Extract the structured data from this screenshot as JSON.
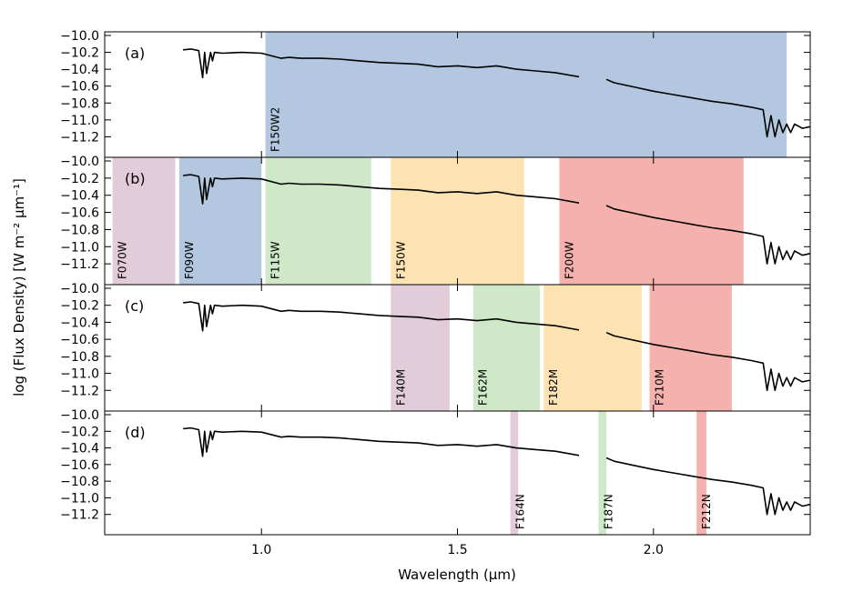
{
  "chart_data": {
    "type": "line",
    "xlabel": "Wavelength (μm)",
    "ylabel": "log (Flux Density) [W m⁻² μm⁻¹]",
    "xlim": [
      0.6,
      2.4
    ],
    "ylim": [
      -11.4,
      -10.0
    ],
    "x_ticks": [
      {
        "value": 1.0,
        "label": "1.0"
      },
      {
        "value": 1.5,
        "label": "1.5"
      },
      {
        "value": 2.0,
        "label": "2.0"
      }
    ],
    "y_ticks": [
      {
        "value": -10.0,
        "label": "−10.0"
      },
      {
        "value": -10.2,
        "label": "−10.2"
      },
      {
        "value": -10.4,
        "label": "−10.4"
      },
      {
        "value": -10.6,
        "label": "−10.6"
      },
      {
        "value": -10.8,
        "label": "−10.8"
      },
      {
        "value": -11.0,
        "label": "−11.0"
      },
      {
        "value": -11.2,
        "label": "−11.2"
      }
    ],
    "spectrum": {
      "segments": [
        {
          "x": [
            0.8,
            0.82,
            0.84,
            0.85,
            0.855,
            0.86,
            0.87,
            0.875,
            0.88,
            0.9,
            0.95,
            1.0,
            1.05,
            1.07,
            1.1,
            1.15,
            1.2,
            1.25,
            1.3,
            1.35,
            1.4,
            1.45,
            1.5,
            1.55,
            1.6,
            1.65,
            1.7,
            1.75,
            1.81
          ],
          "y": [
            -10.17,
            -10.16,
            -10.18,
            -10.5,
            -10.2,
            -10.45,
            -10.2,
            -10.3,
            -10.2,
            -10.21,
            -10.2,
            -10.21,
            -10.27,
            -10.26,
            -10.27,
            -10.27,
            -10.28,
            -10.3,
            -10.32,
            -10.33,
            -10.34,
            -10.37,
            -10.36,
            -10.38,
            -10.36,
            -10.4,
            -10.42,
            -10.44,
            -10.49
          ]
        },
        {
          "x": [
            1.88,
            1.9,
            1.95,
            2.0,
            2.05,
            2.1,
            2.15,
            2.2,
            2.25,
            2.28,
            2.29,
            2.3,
            2.31,
            2.32,
            2.33,
            2.34,
            2.35,
            2.36,
            2.38,
            2.4
          ],
          "y": [
            -10.52,
            -10.56,
            -10.61,
            -10.66,
            -10.7,
            -10.74,
            -10.78,
            -10.81,
            -10.85,
            -10.88,
            -11.2,
            -10.95,
            -11.2,
            -11.0,
            -11.15,
            -11.05,
            -11.15,
            -11.05,
            -11.1,
            -11.08
          ]
        }
      ]
    },
    "panels": [
      {
        "label": "(a)",
        "bands": [
          {
            "name": "F150W2",
            "x0": 1.01,
            "x1": 2.34,
            "color": "#b3c8e0"
          }
        ]
      },
      {
        "label": "(b)",
        "bands": [
          {
            "name": "F070W",
            "x0": 0.62,
            "x1": 0.78,
            "color": "#e3ccd9"
          },
          {
            "name": "F090W",
            "x0": 0.79,
            "x1": 1.0,
            "color": "#b3c8e0"
          },
          {
            "name": "F115W",
            "x0": 1.01,
            "x1": 1.28,
            "color": "#cfe9c8"
          },
          {
            "name": "F150W",
            "x0": 1.33,
            "x1": 1.67,
            "color": "#fde3b1"
          },
          {
            "name": "F200W",
            "x0": 1.76,
            "x1": 2.23,
            "color": "#f4b1ad"
          }
        ]
      },
      {
        "label": "(c)",
        "bands": [
          {
            "name": "F140M",
            "x0": 1.33,
            "x1": 1.48,
            "color": "#e3ccd9"
          },
          {
            "name": "F162M",
            "x0": 1.54,
            "x1": 1.71,
            "color": "#cfe9c8"
          },
          {
            "name": "F182M",
            "x0": 1.72,
            "x1": 1.97,
            "color": "#fde3b1"
          },
          {
            "name": "F210M",
            "x0": 1.99,
            "x1": 2.2,
            "color": "#f4b1ad"
          }
        ]
      },
      {
        "label": "(d)",
        "bands": [
          {
            "name": "F164N",
            "x0": 1.635,
            "x1": 1.655,
            "color": "#e3ccd9"
          },
          {
            "name": "F187N",
            "x0": 1.86,
            "x1": 1.88,
            "color": "#cfe9c8"
          },
          {
            "name": "F212N",
            "x0": 2.11,
            "x1": 2.135,
            "color": "#f4b1ad"
          }
        ]
      }
    ]
  }
}
